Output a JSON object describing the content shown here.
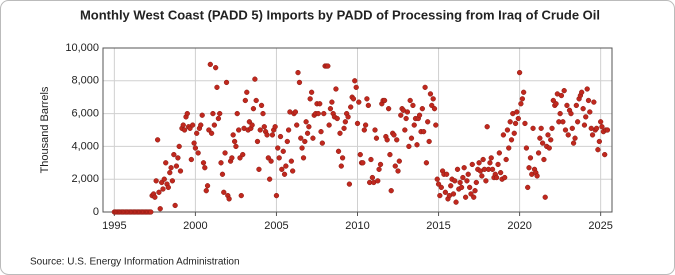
{
  "chart_data": {
    "type": "scatter",
    "title": "Monthly West Coast (PADD 5) Imports by PADD of Processing from Iraq of Crude Oil",
    "y_label": "Thousand Barrels",
    "source": "Source: U.S. Energy Information Administration",
    "color": "#c0281e",
    "grid": true,
    "xlim": [
      1994.3,
      2025.7
    ],
    "xticks": [
      1995,
      2000,
      2005,
      2010,
      2015,
      2020,
      2025
    ],
    "ylim": [
      0,
      10000
    ],
    "yticks": [
      0,
      {
        "value": 2000,
        "label": "2,000"
      },
      {
        "value": 4000,
        "label": "4,000"
      },
      {
        "value": 6000,
        "label": "6,000"
      },
      {
        "value": 8000,
        "label": "8,000"
      },
      {
        "value": 10000,
        "label": "10,000"
      }
    ],
    "x": [
      1995,
      1995.08,
      1995.17,
      1995.25,
      1995.33,
      1995.42,
      1995.5,
      1995.58,
      1995.67,
      1995.75,
      1995.83,
      1995.92,
      1996,
      1996.08,
      1996.17,
      1996.25,
      1996.33,
      1996.42,
      1996.5,
      1996.58,
      1996.67,
      1996.75,
      1996.83,
      1996.92,
      1997,
      1997.08,
      1997.17,
      1997.25,
      1997.33,
      1997.42,
      1997.5,
      1997.58,
      1997.67,
      1997.75,
      1997.83,
      1997.92,
      1998,
      1998.08,
      1998.17,
      1998.25,
      1998.33,
      1998.42,
      1998.5,
      1998.58,
      1998.67,
      1998.75,
      1998.83,
      1998.92,
      1999,
      1999.08,
      1999.17,
      1999.25,
      1999.33,
      1999.42,
      1999.5,
      1999.58,
      1999.67,
      1999.75,
      1999.83,
      1999.92,
      2000,
      2000.08,
      2000.17,
      2000.25,
      2000.33,
      2000.42,
      2000.5,
      2000.58,
      2000.67,
      2000.75,
      2000.83,
      2000.92,
      2001,
      2001.08,
      2001.17,
      2001.25,
      2001.33,
      2001.42,
      2001.5,
      2001.58,
      2001.67,
      2001.75,
      2001.83,
      2001.92,
      2002,
      2002.08,
      2002.17,
      2002.25,
      2002.33,
      2002.42,
      2002.5,
      2002.58,
      2002.67,
      2002.75,
      2002.83,
      2002.92,
      2003,
      2003.08,
      2003.17,
      2003.25,
      2003.33,
      2003.42,
      2003.5,
      2003.58,
      2003.67,
      2003.75,
      2003.83,
      2003.92,
      2004,
      2004.08,
      2004.17,
      2004.25,
      2004.33,
      2004.42,
      2004.5,
      2004.58,
      2004.67,
      2004.75,
      2004.83,
      2004.92,
      2005,
      2005.08,
      2005.17,
      2005.25,
      2005.33,
      2005.42,
      2005.5,
      2005.58,
      2005.67,
      2005.75,
      2005.83,
      2005.92,
      2006,
      2006.08,
      2006.17,
      2006.25,
      2006.33,
      2006.42,
      2006.5,
      2006.58,
      2006.67,
      2006.75,
      2006.83,
      2006.92,
      2007,
      2007.08,
      2007.17,
      2007.25,
      2007.33,
      2007.42,
      2007.5,
      2007.58,
      2007.67,
      2007.75,
      2007.83,
      2007.92,
      2008,
      2008.08,
      2008.17,
      2008.25,
      2008.33,
      2008.42,
      2008.5,
      2008.58,
      2008.67,
      2008.75,
      2008.83,
      2008.92,
      2009,
      2009.08,
      2009.17,
      2009.25,
      2009.33,
      2009.42,
      2009.5,
      2009.58,
      2009.67,
      2009.75,
      2009.83,
      2009.92,
      2010,
      2010.08,
      2010.17,
      2010.25,
      2010.33,
      2010.42,
      2010.5,
      2010.58,
      2010.67,
      2010.75,
      2010.83,
      2010.92,
      2011,
      2011.08,
      2011.17,
      2011.25,
      2011.33,
      2011.42,
      2011.5,
      2011.58,
      2011.67,
      2011.75,
      2011.83,
      2011.92,
      2012,
      2012.08,
      2012.17,
      2012.25,
      2012.33,
      2012.42,
      2012.5,
      2012.58,
      2012.67,
      2012.75,
      2012.83,
      2012.92,
      2013,
      2013.08,
      2013.17,
      2013.25,
      2013.33,
      2013.42,
      2013.5,
      2013.58,
      2013.67,
      2013.75,
      2013.83,
      2013.92,
      2014,
      2014.08,
      2014.17,
      2014.25,
      2014.33,
      2014.42,
      2014.5,
      2014.58,
      2014.67,
      2014.75,
      2014.83,
      2014.92,
      2015,
      2015.08,
      2015.17,
      2015.25,
      2015.33,
      2015.42,
      2015.5,
      2015.58,
      2015.67,
      2015.75,
      2015.83,
      2015.92,
      2016,
      2016.08,
      2016.17,
      2016.25,
      2016.33,
      2016.42,
      2016.5,
      2016.58,
      2016.67,
      2016.75,
      2016.83,
      2016.92,
      2017,
      2017.08,
      2017.17,
      2017.25,
      2017.33,
      2017.42,
      2017.5,
      2017.58,
      2017.67,
      2017.75,
      2017.83,
      2017.92,
      2018,
      2018.08,
      2018.17,
      2018.25,
      2018.33,
      2018.42,
      2018.5,
      2018.58,
      2018.67,
      2018.75,
      2018.83,
      2018.92,
      2019,
      2019.08,
      2019.17,
      2019.25,
      2019.33,
      2019.42,
      2019.5,
      2019.58,
      2019.67,
      2019.75,
      2019.83,
      2019.92,
      2020,
      2020.08,
      2020.17,
      2020.25,
      2020.33,
      2020.42,
      2020.5,
      2020.58,
      2020.67,
      2020.75,
      2020.83,
      2020.92,
      2021,
      2021.08,
      2021.17,
      2021.25,
      2021.33,
      2021.42,
      2021.5,
      2021.58,
      2021.67,
      2021.75,
      2021.83,
      2021.92,
      2022,
      2022.08,
      2022.17,
      2022.25,
      2022.33,
      2022.42,
      2022.5,
      2022.58,
      2022.67,
      2022.75,
      2022.83,
      2022.92,
      2023,
      2023.08,
      2023.17,
      2023.25,
      2023.33,
      2023.42,
      2023.5,
      2023.58,
      2023.67,
      2023.75,
      2023.83,
      2023.92,
      2024,
      2024.08,
      2024.17,
      2024.25,
      2024.33,
      2024.42,
      2024.5,
      2024.58,
      2024.67,
      2024.75,
      2024.83,
      2024.92,
      2025,
      2025.08,
      2025.17,
      2025.25,
      2025.33,
      2025.42
    ],
    "values": [
      0,
      0,
      0,
      0,
      0,
      0,
      0,
      0,
      0,
      0,
      0,
      0,
      0,
      0,
      0,
      0,
      0,
      0,
      0,
      0,
      0,
      0,
      0,
      0,
      0,
      0,
      0,
      0,
      1000,
      1100,
      900,
      1900,
      4400,
      1200,
      200,
      1800,
      1400,
      2000,
      3000,
      1700,
      1500,
      2400,
      2700,
      1900,
      3500,
      400,
      2800,
      3300,
      4000,
      2500,
      5100,
      5300,
      5000,
      5800,
      6000,
      5200,
      5100,
      3200,
      5300,
      4200,
      3900,
      4800,
      3600,
      5100,
      5300,
      5900,
      3000,
      2700,
      1300,
      1600,
      5000,
      9000,
      4800,
      6000,
      5300,
      8800,
      7600,
      5700,
      6000,
      3000,
      2300,
      1200,
      3600,
      7900,
      1000,
      800,
      3100,
      3300,
      4700,
      4300,
      4000,
      6000,
      5000,
      3300,
      1000,
      3500,
      5100,
      6800,
      7300,
      5000,
      5500,
      5100,
      5300,
      6300,
      8100,
      6800,
      4300,
      2600,
      5000,
      6500,
      6000,
      5200,
      4900,
      4700,
      3300,
      2000,
      3100,
      4700,
      5000,
      5200,
      1000,
      3900,
      3300,
      4600,
      2600,
      3700,
      2300,
      2800,
      4300,
      5000,
      6100,
      3100,
      2500,
      6000,
      6100,
      5300,
      8500,
      7900,
      4500,
      3900,
      3300,
      4300,
      5500,
      4800,
      5200,
      6900,
      7300,
      4500,
      5900,
      6000,
      6600,
      6000,
      6600,
      4900,
      4200,
      6000,
      8900,
      8900,
      8900,
      5300,
      6300,
      6700,
      6000,
      5800,
      7500,
      5700,
      3700,
      4800,
      2800,
      3300,
      5100,
      5500,
      6000,
      5800,
      1700,
      6400,
      7000,
      6900,
      8000,
      7600,
      5400,
      6700,
      3500,
      3000,
      3000,
      5000,
      5300,
      6900,
      6500,
      1800,
      3200,
      2100,
      1800,
      5000,
      4500,
      1900,
      2600,
      2900,
      6600,
      6800,
      6800,
      4600,
      4400,
      6300,
      3500,
      1300,
      4800,
      4700,
      2800,
      4400,
      2500,
      3100,
      5900,
      6300,
      6200,
      5000,
      5700,
      6100,
      4000,
      6800,
      4500,
      6500,
      5300,
      5700,
      4100,
      5700,
      5900,
      4900,
      6300,
      4900,
      7600,
      3000,
      5500,
      4300,
      7200,
      6500,
      6900,
      6300,
      5300,
      2000,
      1700,
      1000,
      1500,
      2500,
      2300,
      1200,
      2300,
      800,
      1000,
      1600,
      2000,
      1100,
      1900,
      600,
      2600,
      1400,
      1800,
      1500,
      2100,
      2700,
      900,
      1900,
      2300,
      1500,
      1100,
      2900,
      900,
      1300,
      1800,
      2600,
      3000,
      2500,
      2200,
      3200,
      2600,
      1900,
      5200,
      2600,
      3000,
      3300,
      2600,
      2100,
      2300,
      2100,
      2900,
      3600,
      2400,
      2000,
      4700,
      2100,
      3200,
      5000,
      3900,
      5500,
      4400,
      6000,
      4800,
      5400,
      6100,
      5700,
      8500,
      6600,
      6900,
      7300,
      5400,
      3900,
      1500,
      2700,
      3300,
      2300,
      5100,
      2600,
      2400,
      2200,
      3600,
      4500,
      5100,
      4200,
      3200,
      900,
      4000,
      4700,
      3900,
      4400,
      5100,
      6800,
      6500,
      6600,
      7200,
      5500,
      6000,
      7100,
      5500,
      7400,
      5000,
      6500,
      4700,
      6200,
      6000,
      5100,
      4200,
      4500,
      6500,
      5500,
      6900,
      7100,
      7300,
      6300,
      5300,
      5800,
      7500,
      6800,
      6100,
      5100,
      4700,
      6700,
      5000,
      5100,
      3800,
      4300,
      5500,
      5200,
      4900,
      3500,
      5000,
      5000
    ]
  }
}
